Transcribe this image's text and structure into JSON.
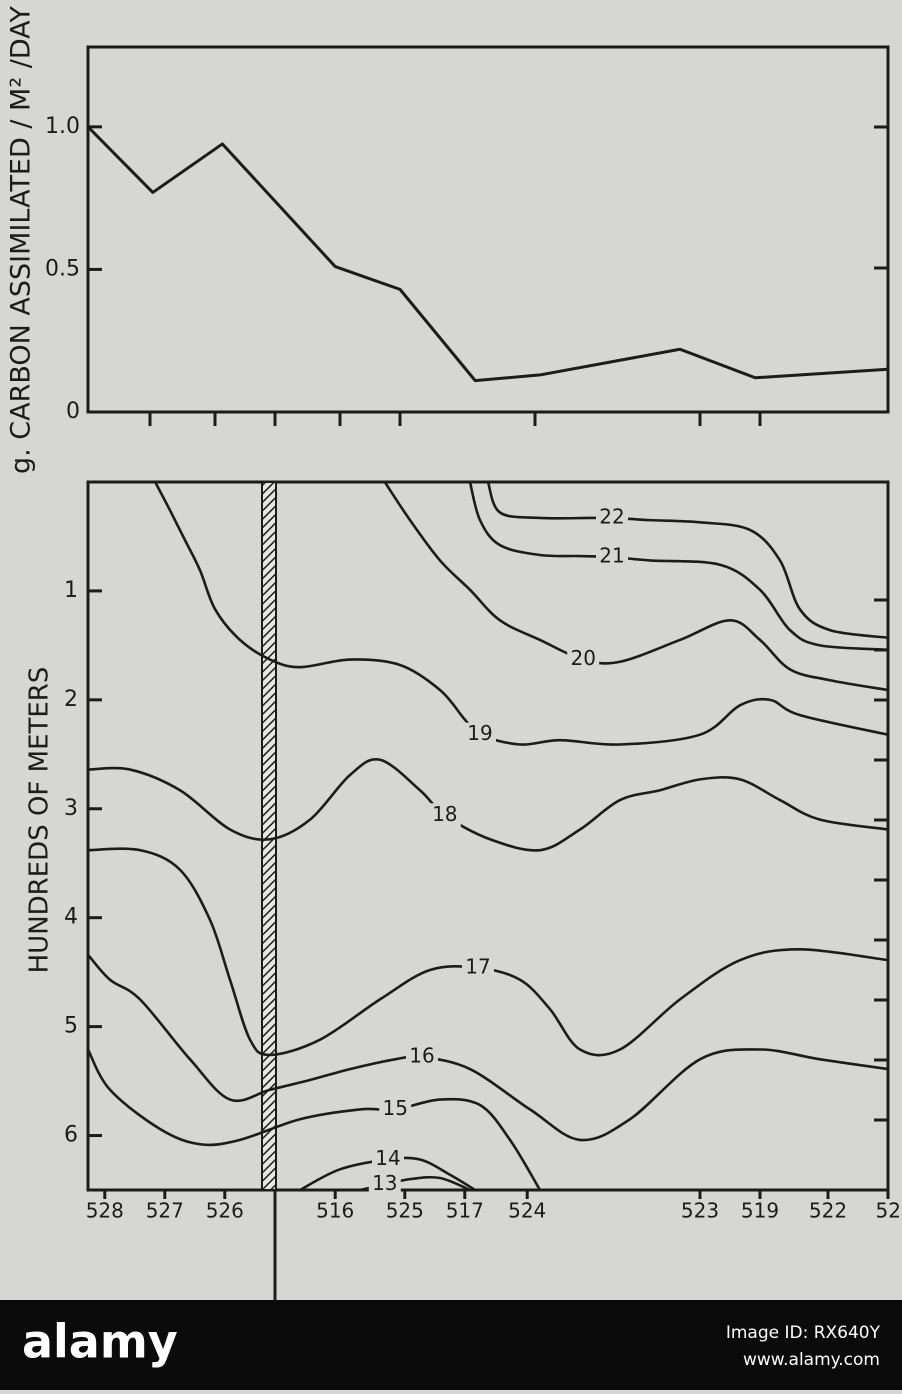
{
  "chart_data": [
    {
      "type": "line",
      "ylabel": "g. CARBON ASSIMILATED / M² /DAY",
      "x": [
        0,
        8.1,
        16.8,
        30.9,
        39,
        48.4,
        56.5,
        74,
        83.4,
        100
      ],
      "values": [
        1.0,
        0.77,
        0.94,
        0.51,
        0.43,
        0.11,
        0.13,
        0.22,
        0.12,
        0.15
      ],
      "color": "#1c1c1c",
      "xlim": [
        0,
        100
      ],
      "ylim": [
        0,
        1.28
      ],
      "yticks": [
        0,
        0.5,
        {
          "value": 1,
          "label": "1.0"
        }
      ]
    },
    {
      "type": "contour",
      "ylabel": "HUNDREDS OF METERS",
      "categories": [
        "528",
        "527",
        "526",
        "516",
        "525",
        "517",
        "524",
        "523",
        "519",
        "522",
        "52"
      ],
      "x": [
        2.1,
        9.6,
        17.1,
        30.9,
        39.6,
        47.1,
        54.9,
        76.5,
        84,
        92.5,
        100.9
      ],
      "xlim": [
        0,
        100
      ],
      "ylim": [
        0,
        6.5
      ],
      "yticks": [
        1,
        2,
        3,
        4,
        5,
        6
      ],
      "color": "#1c1c1c",
      "contours": [
        {
          "level": 22,
          "x": [
            50,
            51.5,
            56.5,
            62.75,
            65.5,
            70.25,
            76.5,
            82.75,
            86.5,
            89,
            92.75,
            100
          ],
          "y": [
            0,
            0.28,
            0.33,
            0.33,
            0.33,
            0.35,
            0.37,
            0.44,
            0.72,
            1.17,
            1.36,
            1.43
          ]
        },
        {
          "level": 21,
          "x": [
            47.75,
            49,
            51.5,
            56.5,
            61.5,
            65.5,
            70.25,
            79,
            84,
            87.75,
            91.5,
            100
          ],
          "y": [
            0,
            0.35,
            0.58,
            0.67,
            0.68,
            0.69,
            0.72,
            0.76,
            0.99,
            1.36,
            1.5,
            1.54
          ]
        },
        {
          "level": 20,
          "x": [
            37.1,
            40.25,
            44,
            47.75,
            51.5,
            56.5,
            61.9,
            66.5,
            74,
            80.25,
            84,
            87.75,
            92.75,
            100
          ],
          "y": [
            0,
            0.35,
            0.72,
            0.99,
            1.27,
            1.45,
            1.63,
            1.65,
            1.45,
            1.27,
            1.45,
            1.72,
            1.82,
            1.91
          ]
        },
        {
          "level": 19,
          "x": [
            8.4,
            10.25,
            12.1,
            14,
            15.9,
            19,
            22.75,
            26.5,
            32.75,
            39,
            44,
            47.1,
            49,
            54,
            59,
            66.5,
            76.5,
            81.5,
            85.25,
            89,
            100
          ],
          "y": [
            0,
            0.26,
            0.53,
            0.81,
            1.17,
            1.45,
            1.63,
            1.7,
            1.63,
            1.68,
            1.91,
            2.18,
            2.32,
            2.41,
            2.37,
            2.41,
            2.32,
            2.05,
            2.0,
            2.14,
            2.32
          ]
        },
        {
          "level": 18,
          "x": [
            0,
            5.25,
            11.5,
            17.75,
            22.75,
            27.75,
            32.75,
            36.5,
            41.5,
            44.6,
            50.25,
            56.5,
            61.5,
            66.5,
            71.5,
            76.5,
            81.5,
            86.5,
            91.5,
            100
          ],
          "y": [
            2.64,
            2.64,
            2.83,
            3.19,
            3.28,
            3.1,
            2.69,
            2.55,
            2.83,
            3.06,
            3.28,
            3.38,
            3.19,
            2.92,
            2.83,
            2.73,
            2.73,
            2.92,
            3.1,
            3.19
          ]
        },
        {
          "level": 17,
          "x": [
            0,
            6.5,
            11.5,
            15.25,
            17.75,
            20.25,
            22.75,
            29,
            36.5,
            42.75,
            48.75,
            54,
            57.75,
            61.5,
            66.5,
            74,
            81.5,
            89,
            100
          ],
          "y": [
            3.38,
            3.38,
            3.56,
            4.02,
            4.57,
            5.12,
            5.26,
            5.12,
            4.75,
            4.48,
            4.46,
            4.57,
            4.84,
            5.21,
            5.21,
            4.75,
            4.39,
            4.29,
            4.39
          ]
        },
        {
          "level": 16,
          "x": [
            0,
            2.75,
            6.5,
            12.75,
            17.75,
            22.75,
            27.75,
            32.75,
            38.4,
            41.75,
            47.75,
            55.25,
            61.5,
            67.75,
            76.5,
            84,
            91.5,
            100
          ],
          "y": [
            4.34,
            4.57,
            4.75,
            5.3,
            5.67,
            5.58,
            5.49,
            5.39,
            5.3,
            5.28,
            5.39,
            5.76,
            6.04,
            5.85,
            5.3,
            5.21,
            5.3,
            5.39
          ]
        },
        {
          "level": 15,
          "x": [
            0,
            2.75,
            9,
            14,
            19,
            26.5,
            34,
            38.4,
            44,
            49,
            52.75,
            56.5
          ],
          "y": [
            5.21,
            5.58,
            5.94,
            6.08,
            6.04,
            5.85,
            5.76,
            5.76,
            5.67,
            5.72,
            6.04,
            6.5
          ]
        },
        {
          "level": 14,
          "x": [
            26.5,
            31.5,
            37.5,
            41.5,
            45.25,
            48.4
          ],
          "y": [
            6.5,
            6.31,
            6.22,
            6.22,
            6.36,
            6.5
          ]
        },
        {
          "level": 13,
          "x": [
            34,
            37.1,
            40.25,
            44,
            47.75
          ],
          "y": [
            6.5,
            6.45,
            6.4,
            6.39,
            6.5
          ]
        }
      ]
    }
  ],
  "footer": {
    "brand": "alamy",
    "image_id": "Image ID: RX640Y",
    "url": "www.alamy.com"
  }
}
